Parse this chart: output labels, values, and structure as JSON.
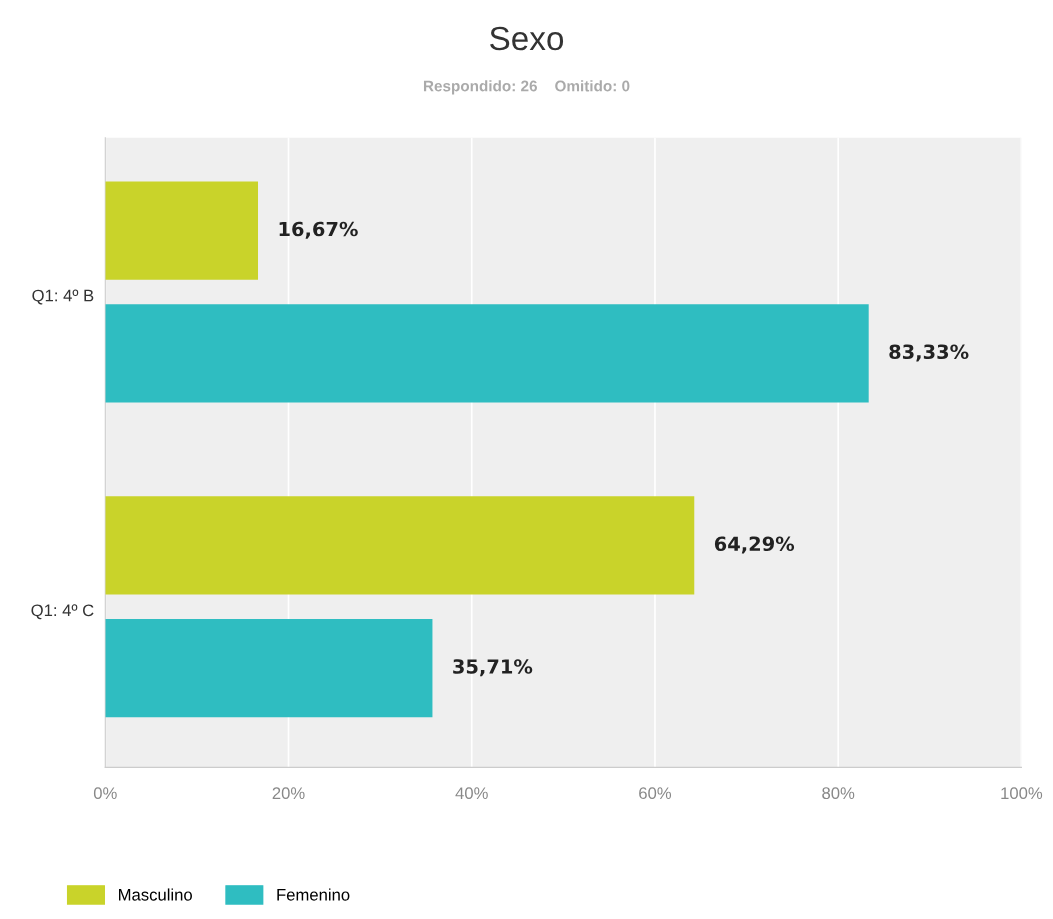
{
  "chart_data": {
    "type": "bar",
    "orientation": "horizontal",
    "title": "Sexo",
    "subtitle": "Respondido: 26    Omitido: 0",
    "categories": [
      "Q1: 4º B",
      "Q1: 4º C"
    ],
    "series": [
      {
        "name": "Masculino",
        "color": "#c9d32a",
        "values": [
          16.67,
          64.29
        ],
        "value_labels": [
          "16,67%",
          "64,29%"
        ]
      },
      {
        "name": "Femenino",
        "color": "#2fbdc1",
        "values": [
          83.33,
          35.71
        ],
        "value_labels": [
          "83,33%",
          "35,71%"
        ]
      }
    ],
    "xlim": [
      0,
      100
    ],
    "xticks": [
      {
        "value": 0,
        "label": "0%"
      },
      {
        "value": 20,
        "label": "20%"
      },
      {
        "value": 40,
        "label": "40%"
      },
      {
        "value": 60,
        "label": "60%"
      },
      {
        "value": 80,
        "label": "80%"
      },
      {
        "value": 100,
        "label": "100%"
      }
    ],
    "grid": "x",
    "legend": "bottom left"
  }
}
